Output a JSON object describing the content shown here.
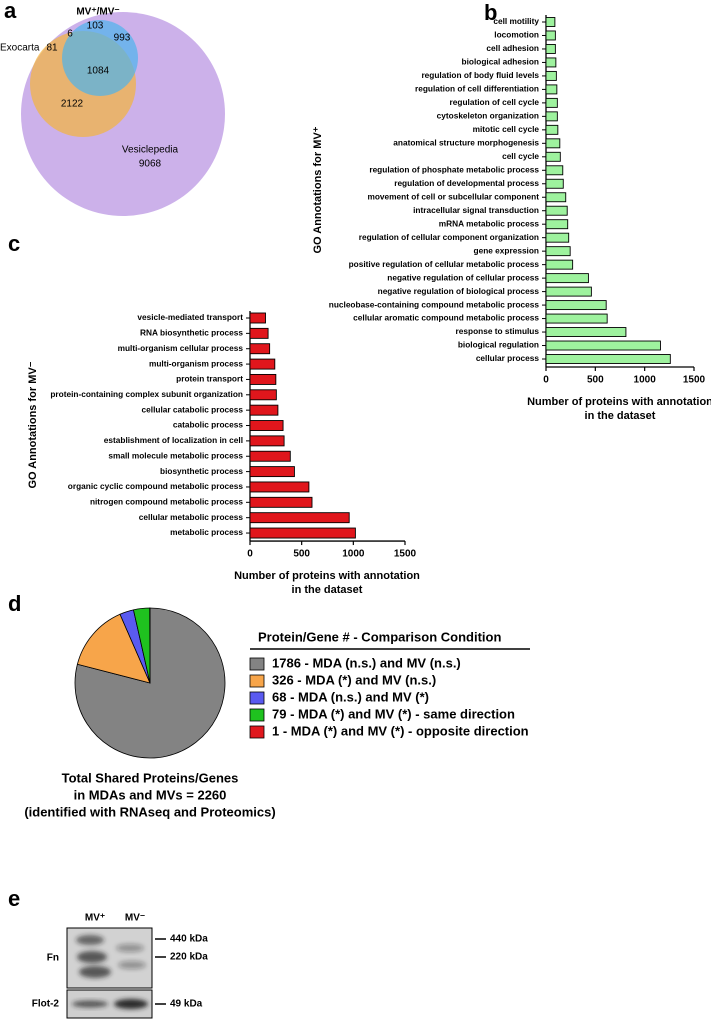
{
  "chart_data": [
    {
      "type": "venn",
      "panel": "a",
      "sets": [
        {
          "name": "MV⁺/MV⁻",
          "color": "#4db3ec"
        },
        {
          "name": "Exocarta",
          "color": "#f4b43c"
        },
        {
          "name": "Vesiclepedia",
          "color": "#c3a3e6"
        }
      ],
      "values": [
        103,
        6,
        993,
        81,
        1084,
        2122,
        9068
      ]
    },
    {
      "type": "hbar",
      "panel": "b",
      "color": "#9ef29e",
      "categories": [
        "cell motility",
        "locomotion",
        "cell adhesion",
        "biological adhesion",
        "regulation of body fluid levels",
        "regulation of cell differentiation",
        "regulation of cell cycle",
        "cytoskeleton organization",
        "mitotic cell cycle",
        "anatomical structure morphogenesis",
        "cell cycle",
        "regulation of phosphate metabolic process",
        "regulation of developmental process",
        "movement of cell or subcellular component",
        "intracellular signal transduction",
        "mRNA metabolic process",
        "regulation of cellular component organization",
        "gene expression",
        "positive regulation of cellular metabolic process",
        "negative regulation of cellular process",
        "negative regulation of biological process",
        "nucleobase-containing compound metabolic process",
        "cellular aromatic compound metabolic process",
        "response to stimulus",
        "biological regulation",
        "cellular process"
      ],
      "values": [
        90,
        95,
        95,
        100,
        105,
        110,
        115,
        115,
        120,
        140,
        145,
        170,
        175,
        200,
        215,
        220,
        230,
        245,
        270,
        430,
        460,
        610,
        620,
        810,
        1160,
        1260
      ],
      "xlim": [
        0,
        1500
      ],
      "xticks": [
        0,
        500,
        1000,
        1500
      ],
      "x_label": [
        "Number of proteins with annotation",
        "in the dataset"
      ],
      "y_label": "GO Annotations for MV⁺"
    },
    {
      "type": "hbar",
      "panel": "c",
      "color": "#e0161c",
      "categories": [
        "vesicle-mediated transport",
        "RNA biosynthetic process",
        "multi-organism cellular process",
        "multi-organism process",
        "protein transport",
        "protein-containing complex subunit organization",
        "cellular catabolic process",
        "catabolic process",
        "establishment of localization in cell",
        "small molecule metabolic process",
        "biosynthetic process",
        "organic cyclic compound metabolic process",
        "nitrogen compound metabolic process",
        "cellular metabolic process",
        "metabolic process"
      ],
      "values": [
        150,
        175,
        190,
        240,
        250,
        255,
        270,
        320,
        330,
        390,
        430,
        570,
        600,
        960,
        1020
      ],
      "xlim": [
        0,
        1500
      ],
      "xticks": [
        0,
        500,
        1000,
        1500
      ],
      "x_label": [
        "Number of proteins with annotation",
        "in the dataset"
      ],
      "y_label": "GO Annotations for MV⁻"
    },
    {
      "type": "pie",
      "panel": "d",
      "legend_title": "Protein/Gene # - Comparison Condition",
      "categories": [
        "1786 - MDA (n.s.) and MV (n.s.)",
        "326 - MDA (*) and MV (n.s.)",
        "68 - MDA (n.s.) and MV (*)",
        "79 - MDA (*) and MV (*) - same direction",
        "1 - MDA (*) and MV (*) - opposite direction"
      ],
      "values": [
        1786,
        326,
        68,
        79,
        1
      ],
      "colors": [
        "#838383",
        "#f7a54a",
        "#5a5af0",
        "#1fc21f",
        "#e0181e"
      ],
      "caption": [
        "Total Shared Proteins/Genes",
        "in MDAs and MVs = 2260",
        "(identified with RNAseq and Proteomics)"
      ]
    }
  ],
  "blot": {
    "panel": "e",
    "lanes": [
      "MV⁺",
      "MV⁻"
    ],
    "rows": [
      "Fn",
      "Flot-2"
    ],
    "markers": [
      "440 kDa",
      "220 kDa",
      "49 kDa"
    ]
  }
}
